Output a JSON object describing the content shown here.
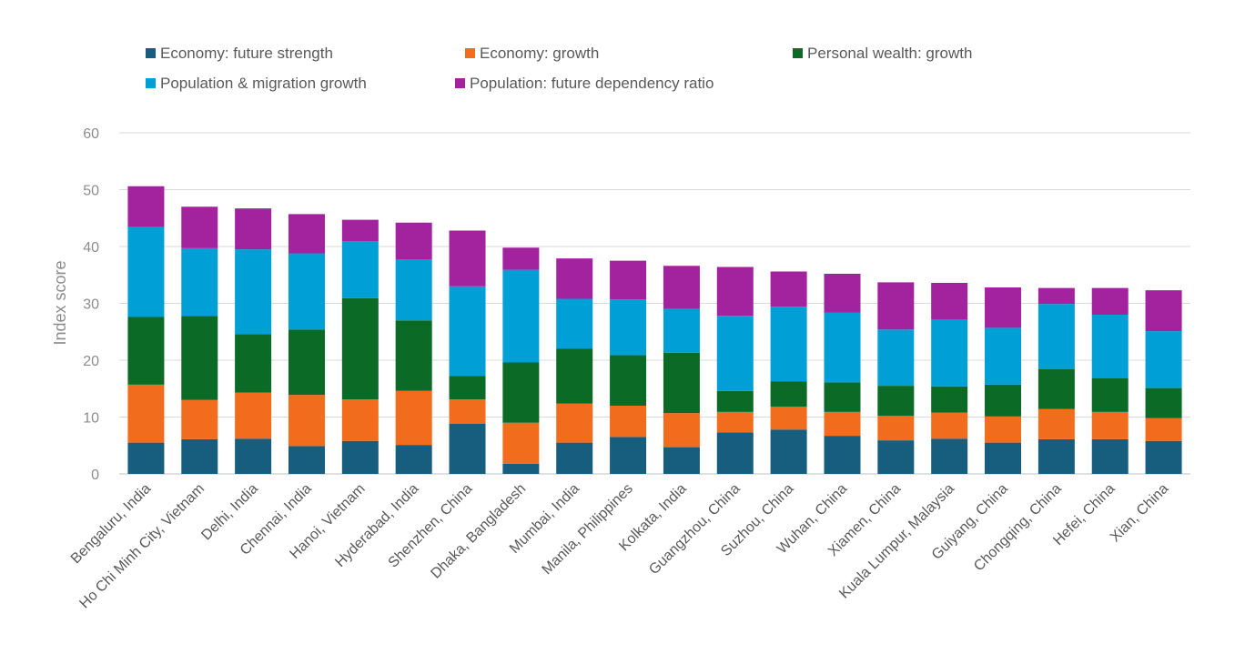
{
  "chart_data": {
    "type": "bar",
    "stacked": true,
    "ylabel": "Index score",
    "ylim": [
      0,
      60
    ],
    "yticks": [
      "0",
      "10",
      "20",
      "30",
      "40",
      "50",
      "60"
    ],
    "grid": true,
    "legend_position": "top",
    "categories": [
      "Bengaluru, India",
      "Ho Chi Minh City, Vietnam",
      "Delhi, India",
      "Chennai, India",
      "Hanoi, Vietnam",
      "Hyderabad, India",
      "Shenzhen, China",
      "Dhaka, Bangladesh",
      "Mumbai, India",
      "Manila, Philippines",
      "Kolkata, India",
      "Guangzhou, China",
      "Suzhou, China",
      "Wuhan, China",
      "Xiamen, China",
      "Kuala Lumpur, Malaysia",
      "Guiyang, China",
      "Chongqing, China",
      "Hefei, China",
      "Xian, China"
    ],
    "series": [
      {
        "name": "Economy: future strength",
        "color": "#175d7d",
        "values": [
          5.5,
          6.1,
          6.2,
          4.9,
          5.8,
          5.1,
          8.8,
          1.8,
          5.5,
          6.5,
          4.7,
          7.3,
          7.8,
          6.7,
          5.9,
          6.2,
          5.5,
          6.1,
          6.1,
          5.8
        ]
      },
      {
        "name": "Economy: growth",
        "color": "#f26c1d",
        "values": [
          10.2,
          6.9,
          8.1,
          9.0,
          7.3,
          9.5,
          4.3,
          7.2,
          6.9,
          5.5,
          6.0,
          3.6,
          4.0,
          4.2,
          4.3,
          4.6,
          4.6,
          5.3,
          4.8,
          4.0
        ]
      },
      {
        "name": "Personal wealth: growth",
        "color": "#0a6a26",
        "values": [
          11.9,
          14.8,
          10.3,
          11.5,
          17.8,
          12.4,
          4.1,
          10.6,
          9.6,
          8.9,
          10.6,
          3.7,
          4.5,
          5.2,
          5.3,
          4.6,
          5.6,
          7.0,
          5.9,
          5.3
        ]
      },
      {
        "name": "Population & migration growth",
        "color": "#00a0d6",
        "values": [
          15.8,
          11.9,
          14.9,
          13.4,
          10.0,
          10.7,
          15.8,
          16.3,
          8.8,
          9.8,
          7.7,
          13.2,
          13.1,
          12.3,
          9.9,
          11.8,
          10.0,
          11.5,
          11.2,
          10.0
        ]
      },
      {
        "name": "Population: future dependency ratio",
        "color": "#a3239e",
        "values": [
          7.2,
          7.3,
          7.2,
          6.9,
          3.8,
          6.5,
          9.8,
          3.9,
          7.1,
          6.8,
          7.6,
          8.6,
          6.2,
          6.8,
          8.3,
          6.4,
          7.1,
          2.8,
          4.7,
          7.2
        ]
      }
    ]
  }
}
